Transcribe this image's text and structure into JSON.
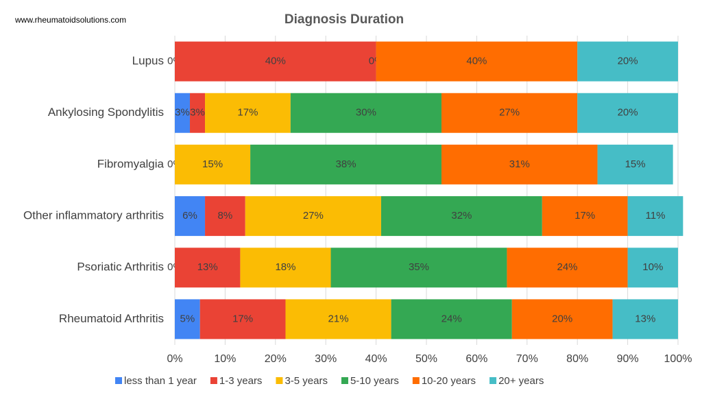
{
  "source": "www.rheumatoidsolutions.com",
  "chart_data": {
    "type": "stacked-bar-horizontal",
    "title": "Diagnosis Duration",
    "categories": [
      "Lupus",
      "Ankylosing Spondylitis",
      "Fibromyalgia",
      "Other inflammatory arthritis",
      "Psoriatic Arthritis",
      "Rheumatoid Arthritis"
    ],
    "series": [
      {
        "name": "less than 1 year",
        "color": "#4285f4",
        "values": [
          0,
          3,
          0,
          6,
          0,
          5
        ],
        "value_labels": [
          "0%",
          "3%",
          "0%",
          "6%",
          "0%",
          "5%"
        ]
      },
      {
        "name": "1-3 years",
        "color": "#ea4335",
        "values": [
          40,
          3,
          null,
          8,
          13,
          17
        ],
        "value_labels": [
          "40%",
          "3%",
          null,
          "8%",
          "13%",
          "17%"
        ]
      },
      {
        "name": "3-5 years",
        "color": "#fbbc04",
        "values": [
          0,
          17,
          15,
          27,
          18,
          21
        ],
        "value_labels": [
          "0%",
          "17%",
          "15%",
          "27%",
          "18%",
          "21%"
        ]
      },
      {
        "name": "5-10 years",
        "color": "#34a853",
        "values": [
          null,
          30,
          38,
          32,
          35,
          24
        ],
        "value_labels": [
          null,
          "30%",
          "38%",
          "32%",
          "35%",
          "24%"
        ]
      },
      {
        "name": "10-20 years",
        "color": "#ff6d01",
        "values": [
          40,
          27,
          31,
          17,
          24,
          20
        ],
        "value_labels": [
          "40%",
          "27%",
          "31%",
          "17%",
          "24%",
          "20%"
        ]
      },
      {
        "name": "20+ years",
        "color": "#46bdc6",
        "values": [
          20,
          20,
          15,
          11,
          10,
          13
        ],
        "value_labels": [
          "20%",
          "20%",
          "15%",
          "11%",
          "10%",
          "13%"
        ]
      }
    ],
    "xlim": [
      0,
      100
    ],
    "xticks": [
      {
        "value": 0,
        "label": "0%"
      },
      {
        "value": 10,
        "label": "10%"
      },
      {
        "value": 20,
        "label": "20%"
      },
      {
        "value": 30,
        "label": "30%"
      },
      {
        "value": 40,
        "label": "40%"
      },
      {
        "value": 50,
        "label": "50%"
      },
      {
        "value": 60,
        "label": "60%"
      },
      {
        "value": 70,
        "label": "70%"
      },
      {
        "value": 80,
        "label": "80%"
      },
      {
        "value": 90,
        "label": "90%"
      },
      {
        "value": 100,
        "label": "100%"
      }
    ],
    "grid": true,
    "legend": "bottom"
  }
}
